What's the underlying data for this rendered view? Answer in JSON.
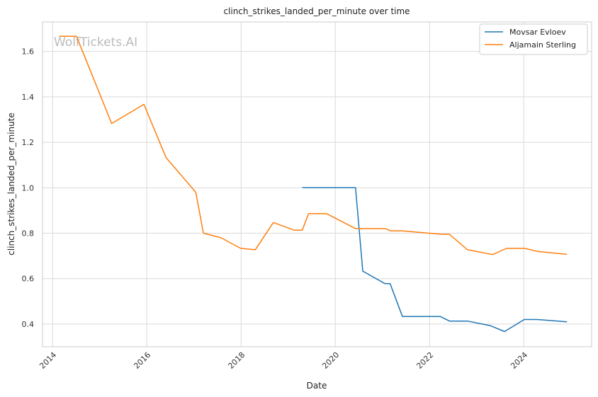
{
  "chart_data": {
    "type": "line",
    "title": "clinch_strikes_landed_per_minute over time",
    "xlabel": "Date",
    "ylabel": "clinch_strikes_landed_per_minute",
    "watermark": "WolfTickets.AI",
    "x_ticks": [
      "2014",
      "2016",
      "2018",
      "2020",
      "2022",
      "2024"
    ],
    "y_ticks": [
      "0.4",
      "0.6",
      "0.8",
      "1.0",
      "1.2",
      "1.4",
      "1.6"
    ],
    "xlim": [
      "2013-10-15",
      "2025-06-10"
    ],
    "ylim": [
      0.3,
      1.73
    ],
    "grid": true,
    "legend_position": "top-right",
    "series": [
      {
        "name": "Movsar Evloev",
        "color": "#1f77b4",
        "points": [
          [
            "2019-04-20",
            1.0
          ],
          [
            "2020-06-06",
            1.0
          ],
          [
            "2020-08-01",
            0.633
          ],
          [
            "2021-01-20",
            0.578
          ],
          [
            "2021-03-01",
            0.578
          ],
          [
            "2021-06-05",
            0.433
          ],
          [
            "2022-03-26",
            0.433
          ],
          [
            "2022-06-04",
            0.413
          ],
          [
            "2022-10-22",
            0.413
          ],
          [
            "2023-04-15",
            0.393
          ],
          [
            "2023-08-05",
            0.367
          ],
          [
            "2024-01-05",
            0.42
          ],
          [
            "2024-04-13",
            0.42
          ],
          [
            "2024-12-01",
            0.41
          ]
        ]
      },
      {
        "name": "Aljamain Sterling",
        "color": "#ff7f0e",
        "points": [
          [
            "2014-02-22",
            1.667
          ],
          [
            "2014-07-05",
            1.667
          ],
          [
            "2015-04-04",
            1.283
          ],
          [
            "2015-12-10",
            1.367
          ],
          [
            "2016-05-29",
            1.133
          ],
          [
            "2017-01-15",
            0.98
          ],
          [
            "2017-03-15",
            0.8
          ],
          [
            "2017-07-29",
            0.78
          ],
          [
            "2017-12-30",
            0.733
          ],
          [
            "2018-04-21",
            0.727
          ],
          [
            "2018-09-08",
            0.847
          ],
          [
            "2019-02-17",
            0.813
          ],
          [
            "2019-04-20",
            0.813
          ],
          [
            "2019-06-08",
            0.886
          ],
          [
            "2019-10-26",
            0.886
          ],
          [
            "2020-06-06",
            0.82
          ],
          [
            "2021-01-24",
            0.82
          ],
          [
            "2021-03-06",
            0.81
          ],
          [
            "2021-06-05",
            0.81
          ],
          [
            "2022-04-09",
            0.795
          ],
          [
            "2022-06-04",
            0.795
          ],
          [
            "2022-10-22",
            0.727
          ],
          [
            "2023-05-06",
            0.706
          ],
          [
            "2023-08-19",
            0.733
          ],
          [
            "2024-01-10",
            0.733
          ],
          [
            "2024-04-13",
            0.72
          ],
          [
            "2024-12-01",
            0.707
          ]
        ]
      }
    ]
  }
}
